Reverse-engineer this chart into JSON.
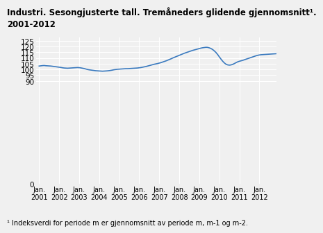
{
  "title": "Industri. Sesongjusterte tall. Tremåneders glidende gjennomsnitt¹.",
  "title2": "2001-2012",
  "footnote": "¹ Indeksverdi for periode m er gjennomsnitt av periode m, m-1 og m-2.",
  "ylim": [
    0,
    128
  ],
  "yticks": [
    0,
    90,
    95,
    100,
    105,
    110,
    115,
    120,
    125
  ],
  "line_color": "#3a7abf",
  "bg_color": "#f0f0f0",
  "title_fontsize": 8.5,
  "footnote_fontsize": 7.0,
  "tick_fontsize": 7.5,
  "x_start_year": 2001,
  "x_end_year": 2012,
  "series": [
    103.0,
    103.2,
    103.4,
    103.5,
    103.3,
    103.2,
    103.1,
    103.0,
    102.8,
    102.6,
    102.4,
    102.2,
    102.0,
    101.8,
    101.5,
    101.3,
    101.2,
    101.1,
    101.2,
    101.3,
    101.4,
    101.5,
    101.6,
    101.7,
    101.6,
    101.4,
    101.1,
    100.8,
    100.4,
    100.0,
    99.7,
    99.5,
    99.3,
    99.1,
    98.9,
    98.8,
    98.7,
    98.6,
    98.5,
    98.6,
    98.7,
    98.8,
    99.0,
    99.2,
    99.5,
    99.8,
    100.0,
    100.2,
    100.3,
    100.4,
    100.5,
    100.6,
    100.7,
    100.7,
    100.8,
    100.9,
    101.0,
    101.1,
    101.2,
    101.3,
    101.5,
    101.7,
    102.0,
    102.3,
    102.6,
    103.0,
    103.4,
    103.8,
    104.2,
    104.6,
    104.9,
    105.2,
    105.6,
    106.0,
    106.5,
    107.0,
    107.5,
    108.1,
    108.7,
    109.3,
    110.0,
    110.6,
    111.2,
    111.8,
    112.4,
    113.0,
    113.6,
    114.2,
    114.7,
    115.2,
    115.7,
    116.2,
    116.7,
    117.1,
    117.5,
    117.9,
    118.3,
    118.7,
    119.0,
    119.2,
    119.4,
    119.3,
    118.9,
    118.3,
    117.4,
    116.2,
    114.8,
    113.0,
    111.0,
    109.0,
    107.2,
    105.7,
    104.6,
    104.0,
    103.8,
    104.0,
    104.5,
    105.2,
    106.0,
    106.7,
    107.2,
    107.6,
    108.0,
    108.5,
    109.0,
    109.5,
    110.0,
    110.5,
    111.0,
    111.5,
    112.0,
    112.4,
    112.7,
    112.9,
    113.0,
    113.1,
    113.2,
    113.3,
    113.4,
    113.5,
    113.6,
    113.7,
    113.8,
    114.0
  ]
}
